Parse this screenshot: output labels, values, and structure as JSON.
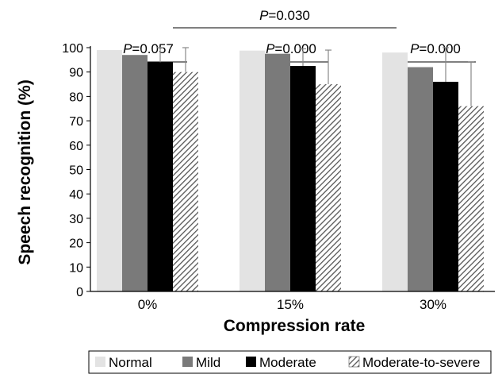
{
  "chart_data": {
    "type": "bar",
    "title": "",
    "xlabel": "Compression rate",
    "ylabel": "Speech recognition (%)",
    "ylim": [
      0,
      100
    ],
    "yticks": [
      0,
      10,
      20,
      30,
      40,
      50,
      60,
      70,
      80,
      90,
      100
    ],
    "categories": [
      "0%",
      "15%",
      "30%"
    ],
    "series": [
      {
        "name": "Normal",
        "values": [
          99,
          98.8,
          98
        ],
        "errors": [
          0,
          0,
          0
        ],
        "color": "#e3e3e3",
        "pattern": "solid"
      },
      {
        "name": "Mild",
        "values": [
          97,
          97.5,
          92
        ],
        "errors": [
          0,
          0,
          0
        ],
        "color": "#7a7a7a",
        "pattern": "solid"
      },
      {
        "name": "Moderate",
        "values": [
          94,
          92.5,
          86
        ],
        "errors": [
          6,
          7,
          14
        ],
        "color": "#000000",
        "pattern": "solid"
      },
      {
        "name": "Moderate-to-severe",
        "values": [
          90,
          85,
          76
        ],
        "errors": [
          10,
          14,
          18
        ],
        "color": "#555555",
        "pattern": "hatched"
      }
    ],
    "legend_position": "bottom",
    "grid": false,
    "annotations": [
      {
        "type": "p-value",
        "prefix": "P",
        "text": "=0.030",
        "spans": "Normal at 0% to Moderate-to-severe at 15%"
      },
      {
        "type": "p-value",
        "prefix": "P",
        "text": "=0.057",
        "spans": "0%"
      },
      {
        "type": "p-value",
        "prefix": "P",
        "text": "=0.000",
        "spans": "15%"
      },
      {
        "type": "p-value",
        "prefix": "P",
        "text": "=0.000",
        "spans": "30%"
      }
    ]
  }
}
